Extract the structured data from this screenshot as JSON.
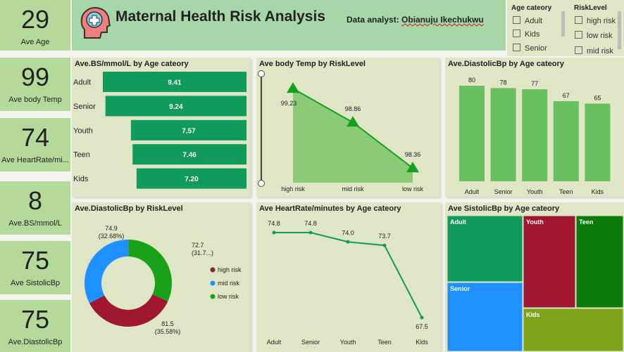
{
  "kpis": [
    {
      "value": "29",
      "label": "Ave Age"
    },
    {
      "value": "99",
      "label": "Ave body Temp"
    },
    {
      "value": "74",
      "label": "Ave HeartRate/mi..."
    },
    {
      "value": "8",
      "label": "Ave.BS/mmol/L"
    },
    {
      "value": "75",
      "label": "Ave SistolicBp"
    },
    {
      "value": "75",
      "label": "Ave.DiastolicBp"
    }
  ],
  "header": {
    "title": "Maternal Health Risk Analysis",
    "analyst_label": "Data analyst:",
    "analyst_name": "Obianuju Ikechukwu"
  },
  "slicers": {
    "age": {
      "title": "Age cateory",
      "options": [
        "Adult",
        "Kids",
        "Senior"
      ]
    },
    "risk": {
      "title": "RiskLevel",
      "options": [
        "high risk",
        "low risk",
        "mid risk"
      ]
    }
  },
  "colors": {
    "green": "#109a5b",
    "lightgreen": "#6abf5f",
    "high": "#a01830",
    "mid": "#1e90ff",
    "low": "#1aa11a",
    "olive": "#7ea31a",
    "darkgreen": "#0a7a0a"
  },
  "chart_data": [
    {
      "id": "bs",
      "type": "bar",
      "orientation": "horizontal",
      "title": "Ave.BS/mmol/L by Age cateory",
      "categories": [
        "Adult",
        "Senior",
        "Youth",
        "Teen",
        "Kids"
      ],
      "values": [
        9.41,
        9.24,
        7.57,
        7.46,
        7.2
      ],
      "labels": [
        "9.41",
        "9.24",
        "7.57",
        "7.46",
        "7.20"
      ]
    },
    {
      "id": "temp",
      "type": "area",
      "title": "Ave body Temp by RiskLevel",
      "categories": [
        "high risk",
        "mid risk",
        "low risk"
      ],
      "values": [
        99.23,
        98.86,
        98.36
      ],
      "labels": [
        "99.23",
        "98.86",
        "98.36"
      ]
    },
    {
      "id": "dia",
      "type": "bar",
      "title": "Ave.DiastolicBp by Age cateory",
      "categories": [
        "Adult",
        "Senior",
        "Youth",
        "Teen",
        "Kids"
      ],
      "values": [
        80,
        78,
        77,
        67,
        65
      ],
      "labels": [
        "80",
        "78",
        "77",
        "67",
        "65"
      ]
    },
    {
      "id": "donut",
      "type": "pie",
      "title": "Ave.DiastolicBp by RiskLevel",
      "categories": [
        "high risk",
        "mid risk",
        "low risk"
      ],
      "values": [
        81.5,
        74.9,
        72.7
      ],
      "labels": [
        [
          "81.5",
          "(35.58%)"
        ],
        [
          "74.9",
          "(32.68%)"
        ],
        [
          "72.7",
          "(31.7...)"
        ]
      ]
    },
    {
      "id": "hr",
      "type": "line",
      "title": "Ave HeartRate/minutes by Age cateory",
      "categories": [
        "Adult",
        "Senior",
        "Youth",
        "Teen",
        "Kids"
      ],
      "values": [
        74.8,
        74.8,
        74.0,
        73.7,
        67.5
      ],
      "labels": [
        "74.8",
        "74.8",
        "74.0",
        "73.7",
        "67.5"
      ]
    },
    {
      "id": "tree",
      "type": "heatmap",
      "title": "Ave SistolicBp by Age cateory",
      "categories": [
        "Adult",
        "Youth",
        "Teen",
        "Senior",
        "Kids"
      ]
    }
  ]
}
